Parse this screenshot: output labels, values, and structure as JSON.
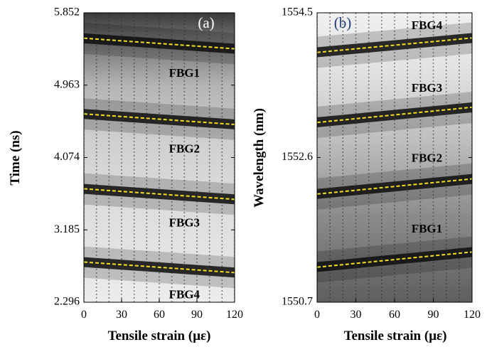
{
  "chart_data": [
    {
      "type": "heatmap",
      "panel_label": "(a)",
      "xlabel": "Tensile strain (με)",
      "ylabel": "Time (ns)",
      "xlim": [
        0,
        120
      ],
      "ylim": [
        2.296,
        5.852
      ],
      "x_ticks": [
        "0",
        "30",
        "60",
        "90",
        "120"
      ],
      "y_ticks": [
        "2.296",
        "3.185",
        "4.074",
        "4.963",
        "5.852"
      ],
      "series": [
        {
          "name": "FBG1",
          "x": [
            0,
            120
          ],
          "y": [
            5.54,
            5.41
          ]
        },
        {
          "name": "FBG2",
          "x": [
            0,
            120
          ],
          "y": [
            4.61,
            4.48
          ]
        },
        {
          "name": "FBG3",
          "x": [
            0,
            120
          ],
          "y": [
            3.69,
            3.56
          ]
        },
        {
          "name": "FBG4",
          "x": [
            0,
            120
          ],
          "y": [
            2.79,
            2.66
          ]
        }
      ],
      "fit_line_color": "#f0e020",
      "labels": [
        {
          "text": "FBG1",
          "x": 80,
          "y": 5.1
        },
        {
          "text": "FBG2",
          "x": 80,
          "y": 4.17
        },
        {
          "text": "FBG3",
          "x": 80,
          "y": 3.26
        },
        {
          "text": "FBG4",
          "x": 80,
          "y": 2.38
        }
      ]
    },
    {
      "type": "heatmap",
      "panel_label": "(b)",
      "xlabel": "Tensile strain (με)",
      "ylabel": "Wavelength (nm)",
      "xlim": [
        0,
        120
      ],
      "ylim": [
        1550.7,
        1554.5
      ],
      "x_ticks": [
        "0",
        "30",
        "60",
        "90",
        "120"
      ],
      "y_ticks": [
        "1550.7",
        "1552.6",
        "1554.5"
      ],
      "series": [
        {
          "name": "FBG4",
          "x": [
            0,
            120
          ],
          "y": [
            1553.98,
            1554.17
          ]
        },
        {
          "name": "FBG3",
          "x": [
            0,
            120
          ],
          "y": [
            1553.06,
            1553.26
          ]
        },
        {
          "name": "FBG2",
          "x": [
            0,
            120
          ],
          "y": [
            1552.12,
            1552.32
          ]
        },
        {
          "name": "FBG1",
          "x": [
            0,
            120
          ],
          "y": [
            1551.16,
            1551.36
          ]
        }
      ],
      "fit_line_color": "#f0e020",
      "labels": [
        {
          "text": "FBG4",
          "x": 85,
          "y": 1554.32
        },
        {
          "text": "FBG3",
          "x": 85,
          "y": 1553.5
        },
        {
          "text": "FBG2",
          "x": 85,
          "y": 1552.58
        },
        {
          "text": "FBG1",
          "x": 85,
          "y": 1551.65
        }
      ]
    }
  ]
}
